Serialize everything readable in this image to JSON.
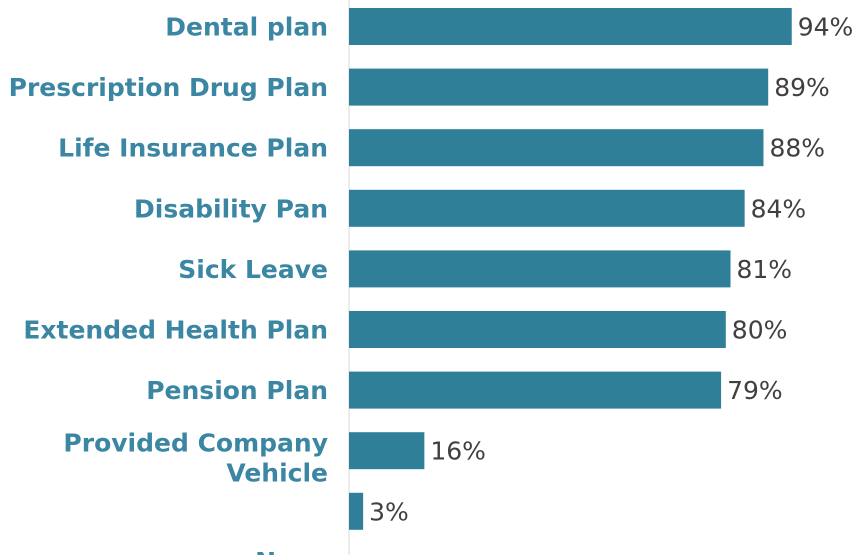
{
  "colors": {
    "bar": "#2e7f97",
    "category_label": "#3a86a3",
    "value_label": "#404040",
    "axis": "#d9d9d9",
    "background": "#ffffff"
  },
  "chart_data": {
    "type": "bar",
    "orientation": "horizontal",
    "title": "",
    "xlabel": "",
    "ylabel": "",
    "xlim": [
      0,
      100
    ],
    "grid": false,
    "legend": "none",
    "value_suffix": "%",
    "categories": [
      [
        "Dental plan"
      ],
      [
        "Prescription Drug Plan"
      ],
      [
        "Life Insurance Plan"
      ],
      [
        "Disability Pan"
      ],
      [
        "Sick Leave"
      ],
      [
        "Extended Health Plan"
      ],
      [
        "Pension Plan"
      ],
      [
        "Provided Company",
        "Vehicle"
      ],
      [
        "None"
      ]
    ],
    "values": [
      94,
      89,
      88,
      84,
      81,
      80,
      79,
      16,
      3
    ]
  }
}
